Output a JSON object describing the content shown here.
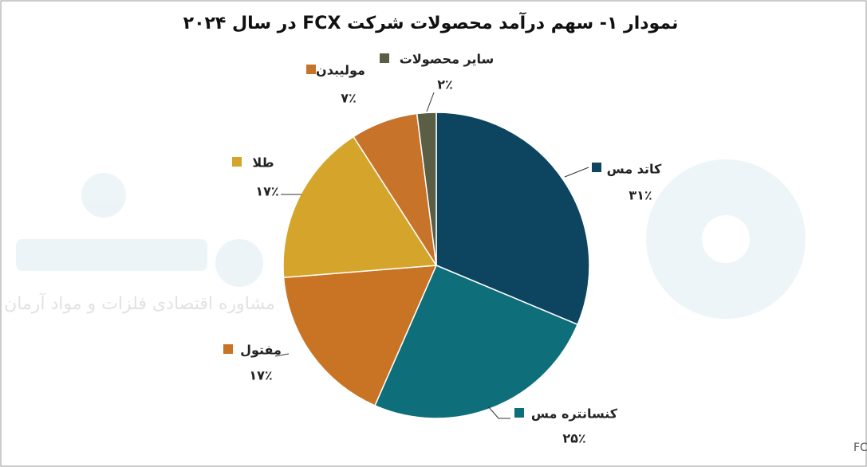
{
  "chart_data": {
    "type": "pie",
    "title": "نمودار ۱- سهم درآمد محصولات شرکت FCX در سال ۲۰۲۴",
    "categories": [
      "کاتد مس",
      "کنسانتره مس",
      "مفتول",
      "طلا",
      "مولیبدن",
      "سایر محصولات"
    ],
    "values": [
      31,
      25,
      17,
      17,
      7,
      2
    ],
    "value_labels": [
      "۳۱٪",
      "۲۵٪",
      "۱۷٪",
      "۱۷٪",
      "۷٪",
      "۲٪"
    ],
    "colors": [
      "#0d4560",
      "#0e6e7a",
      "#c87424",
      "#d4a52a",
      "#c8732a",
      "#5a5e45"
    ],
    "source": "منبع: FCX",
    "watermark": "مشاوره اقتصادی فلزات و مواد آرمان"
  }
}
